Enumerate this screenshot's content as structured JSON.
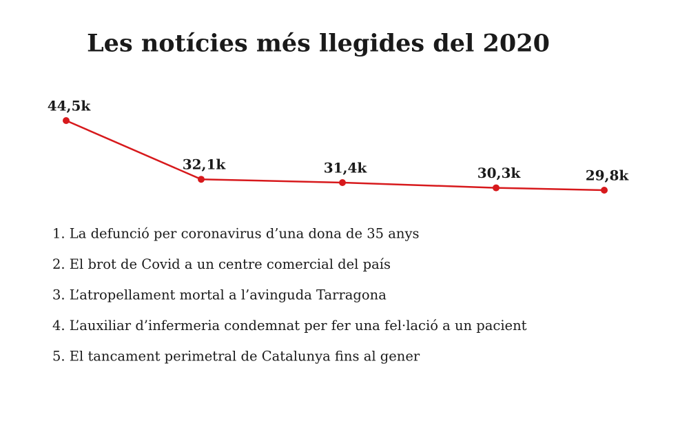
{
  "chart_data": {
    "type": "line",
    "title": "Les notícies més llegides del 2020",
    "categories": [
      "1. La defunció per coronavirus d’una dona de 35 anys",
      "2. El brot de Covid a un centre comercial del país",
      "3. L’atropellament mortal a l’avinguda Tarragona",
      "4. L’auxiliar d’infermeria condemnat per fer una fel·lació a un pacient",
      "5. El tancament perimetral de Catalunya fins al gener"
    ],
    "values": [
      44.5,
      32.1,
      31.4,
      30.3,
      29.8
    ],
    "value_labels": [
      "44,5k",
      "32,1k",
      "31,4k",
      "30,3k",
      "29,8k"
    ],
    "color": "#d7191c"
  }
}
